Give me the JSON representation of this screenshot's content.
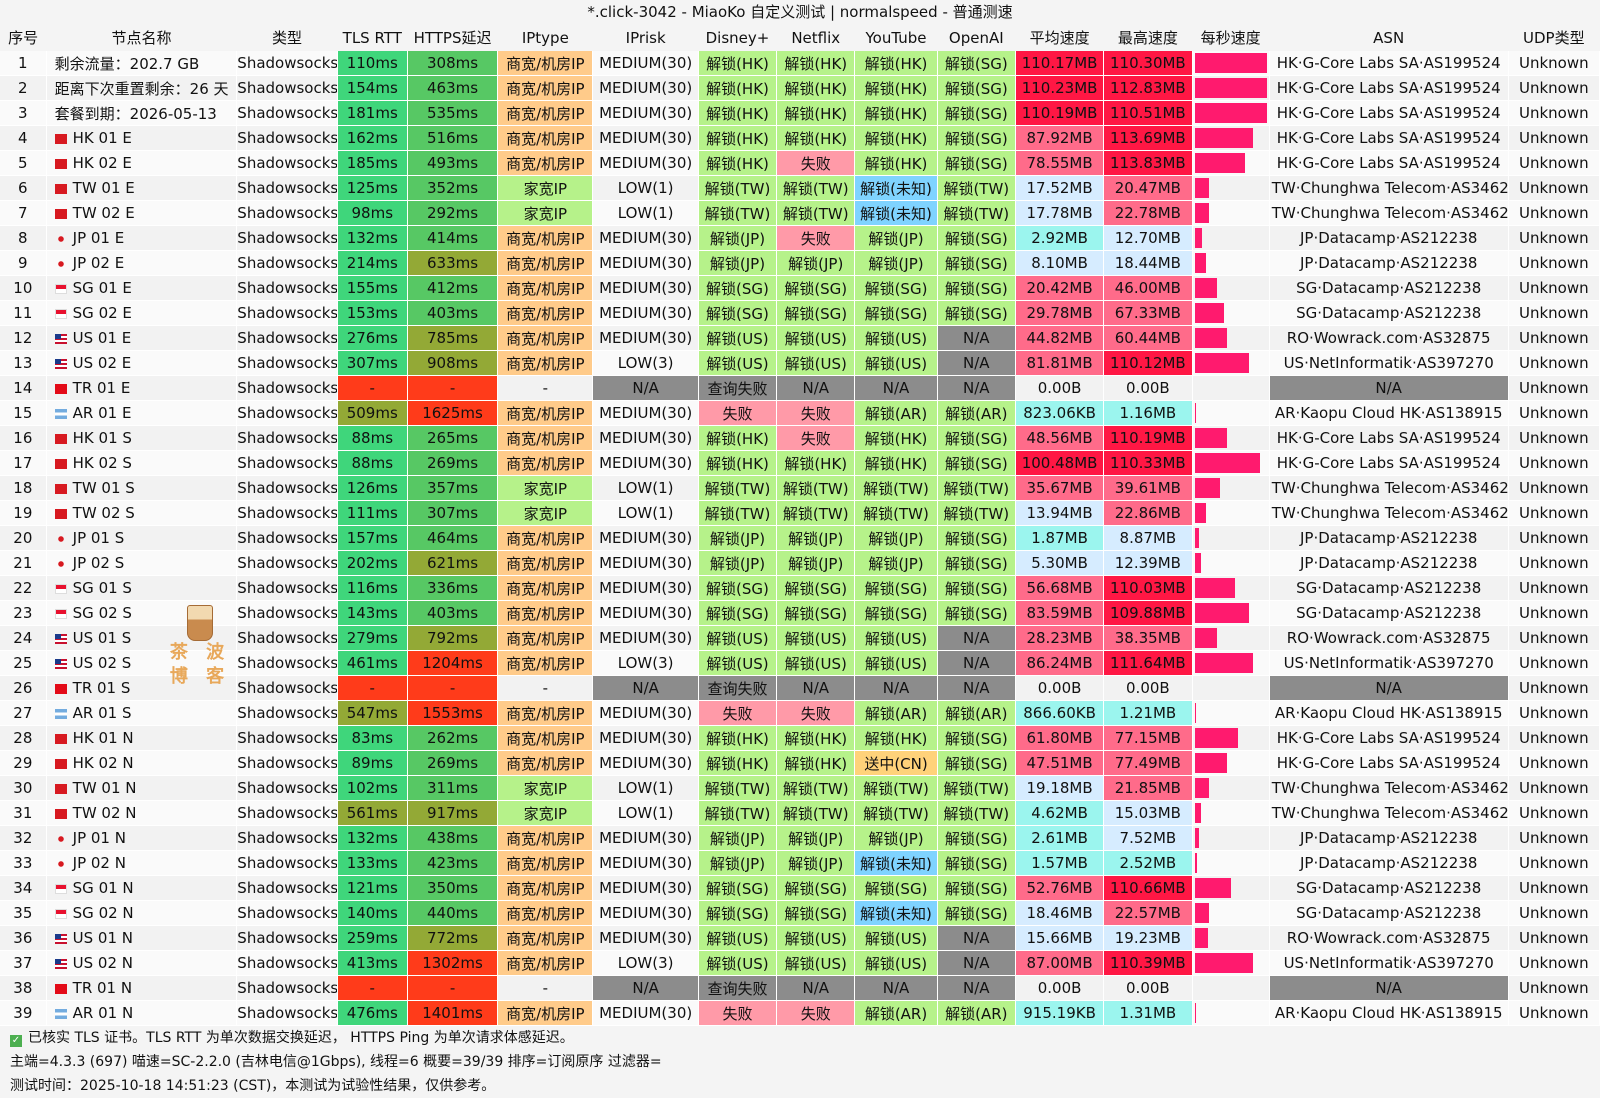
{
  "title": "*.click-3042 - MiaoKo 自定义测试 | normalspeed - 普通测速",
  "headers": [
    "序号",
    "节点名称",
    "类型",
    "TLS RTT",
    "HTTPS延迟",
    "IPtype",
    "IPrisk",
    "Disney+",
    "Netflix",
    "YouTube",
    "OpenAI",
    "平均速度",
    "最高速度",
    "每秒速度",
    "ASN",
    "UDP类型"
  ],
  "colors": {
    "green": "#3fd67b",
    "green2": "#57c864",
    "olive": "#93a936",
    "red": "#ff3b1a",
    "orange_ip": "#ffcb8a",
    "light_green": "#b6f28a",
    "pink": "#ff9aa8",
    "blue": "#7fd3ff",
    "gray": "#8c8c8c",
    "peach": "#ffd27a",
    "speed_red": "#ff1744",
    "speed_pink": "#ff6b8a",
    "speed_light": "#d6ecff",
    "speed_teal": "#9bf5ee",
    "spark": "#ff1a6e"
  },
  "rows": [
    {
      "no": "1",
      "name": "剩余流量：202.7 GB",
      "flag": "",
      "type": "Shadowsocks",
      "tls": "110ms",
      "https": "308ms",
      "iptype": "商宽/机房IP",
      "iprisk": "MEDIUM(30)",
      "disney": "解锁(HK)",
      "netflix": "解锁(HK)",
      "youtube": "解锁(HK)",
      "openai": "解锁(SG)",
      "avg": "110.17MB",
      "max": "110.30MB",
      "spark": 1.0,
      "asn": "HK·G-Core Labs SA·AS199524",
      "udp": "Unknown"
    },
    {
      "no": "2",
      "name": "距离下次重置剩余：26 天",
      "flag": "",
      "type": "Shadowsocks",
      "tls": "154ms",
      "https": "463ms",
      "iptype": "商宽/机房IP",
      "iprisk": "MEDIUM(30)",
      "disney": "解锁(HK)",
      "netflix": "解锁(HK)",
      "youtube": "解锁(HK)",
      "openai": "解锁(SG)",
      "avg": "110.23MB",
      "max": "112.83MB",
      "spark": 1.0,
      "asn": "HK·G-Core Labs SA·AS199524",
      "udp": "Unknown"
    },
    {
      "no": "3",
      "name": "套餐到期：2026-05-13",
      "flag": "",
      "type": "Shadowsocks",
      "tls": "181ms",
      "https": "535ms",
      "iptype": "商宽/机房IP",
      "iprisk": "MEDIUM(30)",
      "disney": "解锁(HK)",
      "netflix": "解锁(HK)",
      "youtube": "解锁(HK)",
      "openai": "解锁(SG)",
      "avg": "110.19MB",
      "max": "110.51MB",
      "spark": 1.0,
      "asn": "HK·G-Core Labs SA·AS199524",
      "udp": "Unknown"
    },
    {
      "no": "4",
      "name": "HK 01 E",
      "flag": "HK",
      "type": "Shadowsocks",
      "tls": "162ms",
      "https": "516ms",
      "iptype": "商宽/机房IP",
      "iprisk": "MEDIUM(30)",
      "disney": "解锁(HK)",
      "netflix": "解锁(HK)",
      "youtube": "解锁(HK)",
      "openai": "解锁(SG)",
      "avg": "87.92MB",
      "max": "113.69MB",
      "spark": 0.8,
      "asn": "HK·G-Core Labs SA·AS199524",
      "udp": "Unknown"
    },
    {
      "no": "5",
      "name": "HK 02 E",
      "flag": "HK",
      "type": "Shadowsocks",
      "tls": "185ms",
      "https": "493ms",
      "iptype": "商宽/机房IP",
      "iprisk": "MEDIUM(30)",
      "disney": "解锁(HK)",
      "netflix": "失败",
      "youtube": "解锁(HK)",
      "openai": "解锁(SG)",
      "avg": "78.55MB",
      "max": "113.83MB",
      "spark": 0.7,
      "asn": "HK·G-Core Labs SA·AS199524",
      "udp": "Unknown"
    },
    {
      "no": "6",
      "name": "TW 01 E",
      "flag": "TW",
      "type": "Shadowsocks",
      "tls": "125ms",
      "https": "352ms",
      "iptype": "家宽IP",
      "iprisk": "LOW(1)",
      "disney": "解锁(TW)",
      "netflix": "解锁(TW)",
      "youtube": "解锁(未知)",
      "openai": "解锁(TW)",
      "avg": "17.52MB",
      "max": "20.47MB",
      "spark": 0.2,
      "asn": "TW·Chunghwa Telecom·AS3462",
      "udp": "Unknown"
    },
    {
      "no": "7",
      "name": "TW 02 E",
      "flag": "TW",
      "type": "Shadowsocks",
      "tls": "98ms",
      "https": "292ms",
      "iptype": "家宽IP",
      "iprisk": "LOW(1)",
      "disney": "解锁(TW)",
      "netflix": "解锁(TW)",
      "youtube": "解锁(未知)",
      "openai": "解锁(TW)",
      "avg": "17.78MB",
      "max": "22.78MB",
      "spark": 0.2,
      "asn": "TW·Chunghwa Telecom·AS3462",
      "udp": "Unknown"
    },
    {
      "no": "8",
      "name": "JP 01 E",
      "flag": "JP",
      "type": "Shadowsocks",
      "tls": "132ms",
      "https": "414ms",
      "iptype": "商宽/机房IP",
      "iprisk": "MEDIUM(30)",
      "disney": "解锁(JP)",
      "netflix": "失败",
      "youtube": "解锁(JP)",
      "openai": "解锁(SG)",
      "avg": "2.92MB",
      "max": "12.70MB",
      "spark": 0.1,
      "asn": "JP·Datacamp·AS212238",
      "udp": "Unknown"
    },
    {
      "no": "9",
      "name": "JP 02 E",
      "flag": "JP",
      "type": "Shadowsocks",
      "tls": "214ms",
      "https": "633ms",
      "iptype": "商宽/机房IP",
      "iprisk": "MEDIUM(30)",
      "disney": "解锁(JP)",
      "netflix": "解锁(JP)",
      "youtube": "解锁(JP)",
      "openai": "解锁(SG)",
      "avg": "8.10MB",
      "max": "18.44MB",
      "spark": 0.15,
      "asn": "JP·Datacamp·AS212238",
      "udp": "Unknown"
    },
    {
      "no": "10",
      "name": "SG 01 E",
      "flag": "SG",
      "type": "Shadowsocks",
      "tls": "155ms",
      "https": "412ms",
      "iptype": "商宽/机房IP",
      "iprisk": "MEDIUM(30)",
      "disney": "解锁(SG)",
      "netflix": "解锁(SG)",
      "youtube": "解锁(SG)",
      "openai": "解锁(SG)",
      "avg": "20.42MB",
      "max": "46.00MB",
      "spark": 0.3,
      "asn": "SG·Datacamp·AS212238",
      "udp": "Unknown"
    },
    {
      "no": "11",
      "name": "SG 02 E",
      "flag": "SG",
      "type": "Shadowsocks",
      "tls": "153ms",
      "https": "403ms",
      "iptype": "商宽/机房IP",
      "iprisk": "MEDIUM(30)",
      "disney": "解锁(SG)",
      "netflix": "解锁(SG)",
      "youtube": "解锁(SG)",
      "openai": "解锁(SG)",
      "avg": "29.78MB",
      "max": "67.33MB",
      "spark": 0.4,
      "asn": "SG·Datacamp·AS212238",
      "udp": "Unknown"
    },
    {
      "no": "12",
      "name": "US 01 E",
      "flag": "US",
      "type": "Shadowsocks",
      "tls": "276ms",
      "https": "785ms",
      "iptype": "商宽/机房IP",
      "iprisk": "MEDIUM(30)",
      "disney": "解锁(US)",
      "netflix": "解锁(US)",
      "youtube": "解锁(US)",
      "openai": "N/A",
      "avg": "44.82MB",
      "max": "60.44MB",
      "spark": 0.45,
      "asn": "RO·Wowrack.com·AS32875",
      "udp": "Unknown"
    },
    {
      "no": "13",
      "name": "US 02 E",
      "flag": "US",
      "type": "Shadowsocks",
      "tls": "307ms",
      "https": "908ms",
      "iptype": "商宽/机房IP",
      "iprisk": "LOW(3)",
      "disney": "解锁(US)",
      "netflix": "解锁(US)",
      "youtube": "解锁(US)",
      "openai": "N/A",
      "avg": "81.81MB",
      "max": "110.12MB",
      "spark": 0.75,
      "asn": "US·NetInformatik·AS397270",
      "udp": "Unknown"
    },
    {
      "no": "14",
      "name": "TR 01 E",
      "flag": "TR",
      "type": "Shadowsocks",
      "tls": "-",
      "https": "-",
      "iptype": "-",
      "iprisk": "N/A",
      "disney": "查询失败",
      "netflix": "N/A",
      "youtube": "N/A",
      "openai": "N/A",
      "avg": "0.00B",
      "max": "0.00B",
      "spark": 0,
      "asn": "N/A",
      "udp": "Unknown"
    },
    {
      "no": "15",
      "name": "AR 01 E",
      "flag": "AR",
      "type": "Shadowsocks",
      "tls": "509ms",
      "https": "1625ms",
      "iptype": "商宽/机房IP",
      "iprisk": "MEDIUM(30)",
      "disney": "失败",
      "netflix": "失败",
      "youtube": "解锁(AR)",
      "openai": "解锁(AR)",
      "avg": "823.06KB",
      "max": "1.16MB",
      "spark": 0.02,
      "asn": "AR·Kaopu Cloud HK·AS138915",
      "udp": "Unknown"
    },
    {
      "no": "16",
      "name": "HK 01 S",
      "flag": "HK",
      "type": "Shadowsocks",
      "tls": "88ms",
      "https": "265ms",
      "iptype": "商宽/机房IP",
      "iprisk": "MEDIUM(30)",
      "disney": "解锁(HK)",
      "netflix": "失败",
      "youtube": "解锁(HK)",
      "openai": "解锁(SG)",
      "avg": "48.56MB",
      "max": "110.19MB",
      "spark": 0.45,
      "asn": "HK·G-Core Labs SA·AS199524",
      "udp": "Unknown"
    },
    {
      "no": "17",
      "name": "HK 02 S",
      "flag": "HK",
      "type": "Shadowsocks",
      "tls": "88ms",
      "https": "269ms",
      "iptype": "商宽/机房IP",
      "iprisk": "MEDIUM(30)",
      "disney": "解锁(HK)",
      "netflix": "解锁(HK)",
      "youtube": "解锁(HK)",
      "openai": "解锁(SG)",
      "avg": "100.48MB",
      "max": "110.33MB",
      "spark": 0.9,
      "asn": "HK·G-Core Labs SA·AS199524",
      "udp": "Unknown"
    },
    {
      "no": "18",
      "name": "TW 01 S",
      "flag": "TW",
      "type": "Shadowsocks",
      "tls": "126ms",
      "https": "357ms",
      "iptype": "家宽IP",
      "iprisk": "LOW(1)",
      "disney": "解锁(TW)",
      "netflix": "解锁(TW)",
      "youtube": "解锁(TW)",
      "openai": "解锁(TW)",
      "avg": "35.67MB",
      "max": "39.61MB",
      "spark": 0.35,
      "asn": "TW·Chunghwa Telecom·AS3462",
      "udp": "Unknown"
    },
    {
      "no": "19",
      "name": "TW 02 S",
      "flag": "TW",
      "type": "Shadowsocks",
      "tls": "111ms",
      "https": "307ms",
      "iptype": "家宽IP",
      "iprisk": "LOW(1)",
      "disney": "解锁(TW)",
      "netflix": "解锁(TW)",
      "youtube": "解锁(TW)",
      "openai": "解锁(TW)",
      "avg": "13.94MB",
      "max": "22.86MB",
      "spark": 0.15,
      "asn": "TW·Chunghwa Telecom·AS3462",
      "udp": "Unknown"
    },
    {
      "no": "20",
      "name": "JP 01 S",
      "flag": "JP",
      "type": "Shadowsocks",
      "tls": "157ms",
      "https": "464ms",
      "iptype": "商宽/机房IP",
      "iprisk": "MEDIUM(30)",
      "disney": "解锁(JP)",
      "netflix": "解锁(JP)",
      "youtube": "解锁(JP)",
      "openai": "解锁(SG)",
      "avg": "1.87MB",
      "max": "8.87MB",
      "spark": 0.05,
      "asn": "JP·Datacamp·AS212238",
      "udp": "Unknown"
    },
    {
      "no": "21",
      "name": "JP 02 S",
      "flag": "JP",
      "type": "Shadowsocks",
      "tls": "202ms",
      "https": "621ms",
      "iptype": "商宽/机房IP",
      "iprisk": "MEDIUM(30)",
      "disney": "解锁(JP)",
      "netflix": "解锁(JP)",
      "youtube": "解锁(JP)",
      "openai": "解锁(SG)",
      "avg": "5.30MB",
      "max": "12.39MB",
      "spark": 0.08,
      "asn": "JP·Datacamp·AS212238",
      "udp": "Unknown"
    },
    {
      "no": "22",
      "name": "SG 01 S",
      "flag": "SG",
      "type": "Shadowsocks",
      "tls": "116ms",
      "https": "336ms",
      "iptype": "商宽/机房IP",
      "iprisk": "MEDIUM(30)",
      "disney": "解锁(SG)",
      "netflix": "解锁(SG)",
      "youtube": "解锁(SG)",
      "openai": "解锁(SG)",
      "avg": "56.68MB",
      "max": "110.03MB",
      "spark": 0.55,
      "asn": "SG·Datacamp·AS212238",
      "udp": "Unknown"
    },
    {
      "no": "23",
      "name": "SG 02 S",
      "flag": "SG",
      "type": "Shadowsocks",
      "tls": "143ms",
      "https": "403ms",
      "iptype": "商宽/机房IP",
      "iprisk": "MEDIUM(30)",
      "disney": "解锁(SG)",
      "netflix": "解锁(SG)",
      "youtube": "解锁(SG)",
      "openai": "解锁(SG)",
      "avg": "83.59MB",
      "max": "109.88MB",
      "spark": 0.75,
      "asn": "SG·Datacamp·AS212238",
      "udp": "Unknown"
    },
    {
      "no": "24",
      "name": "US 01 S",
      "flag": "US",
      "type": "Shadowsocks",
      "tls": "279ms",
      "https": "792ms",
      "iptype": "商宽/机房IP",
      "iprisk": "MEDIUM(30)",
      "disney": "解锁(US)",
      "netflix": "解锁(US)",
      "youtube": "解锁(US)",
      "openai": "N/A",
      "avg": "28.23MB",
      "max": "38.35MB",
      "spark": 0.3,
      "asn": "RO·Wowrack.com·AS32875",
      "udp": "Unknown"
    },
    {
      "no": "25",
      "name": "US 02 S",
      "flag": "US",
      "type": "Shadowsocks",
      "tls": "461ms",
      "https": "1204ms",
      "iptype": "商宽/机房IP",
      "iprisk": "LOW(3)",
      "disney": "解锁(US)",
      "netflix": "解锁(US)",
      "youtube": "解锁(US)",
      "openai": "N/A",
      "avg": "86.24MB",
      "max": "111.64MB",
      "spark": 0.8,
      "asn": "US·NetInformatik·AS397270",
      "udp": "Unknown"
    },
    {
      "no": "26",
      "name": "TR 01 S",
      "flag": "TR",
      "type": "Shadowsocks",
      "tls": "-",
      "https": "-",
      "iptype": "-",
      "iprisk": "N/A",
      "disney": "查询失败",
      "netflix": "N/A",
      "youtube": "N/A",
      "openai": "N/A",
      "avg": "0.00B",
      "max": "0.00B",
      "spark": 0,
      "asn": "N/A",
      "udp": "Unknown"
    },
    {
      "no": "27",
      "name": "AR 01 S",
      "flag": "AR",
      "type": "Shadowsocks",
      "tls": "547ms",
      "https": "1553ms",
      "iptype": "商宽/机房IP",
      "iprisk": "MEDIUM(30)",
      "disney": "失败",
      "netflix": "失败",
      "youtube": "解锁(AR)",
      "openai": "解锁(AR)",
      "avg": "866.60KB",
      "max": "1.21MB",
      "spark": 0.02,
      "asn": "AR·Kaopu Cloud HK·AS138915",
      "udp": "Unknown"
    },
    {
      "no": "28",
      "name": "HK 01 N",
      "flag": "HK",
      "type": "Shadowsocks",
      "tls": "83ms",
      "https": "262ms",
      "iptype": "商宽/机房IP",
      "iprisk": "MEDIUM(30)",
      "disney": "解锁(HK)",
      "netflix": "解锁(HK)",
      "youtube": "解锁(HK)",
      "openai": "解锁(SG)",
      "avg": "61.80MB",
      "max": "77.15MB",
      "spark": 0.6,
      "asn": "HK·G-Core Labs SA·AS199524",
      "udp": "Unknown"
    },
    {
      "no": "29",
      "name": "HK 02 N",
      "flag": "HK",
      "type": "Shadowsocks",
      "tls": "89ms",
      "https": "269ms",
      "iptype": "商宽/机房IP",
      "iprisk": "MEDIUM(30)",
      "disney": "解锁(HK)",
      "netflix": "解锁(HK)",
      "youtube": "送中(CN)",
      "openai": "解锁(SG)",
      "avg": "47.51MB",
      "max": "77.49MB",
      "spark": 0.45,
      "asn": "HK·G-Core Labs SA·AS199524",
      "udp": "Unknown"
    },
    {
      "no": "30",
      "name": "TW 01 N",
      "flag": "TW",
      "type": "Shadowsocks",
      "tls": "102ms",
      "https": "311ms",
      "iptype": "家宽IP",
      "iprisk": "LOW(1)",
      "disney": "解锁(TW)",
      "netflix": "解锁(TW)",
      "youtube": "解锁(TW)",
      "openai": "解锁(TW)",
      "avg": "19.18MB",
      "max": "21.85MB",
      "spark": 0.2,
      "asn": "TW·Chunghwa Telecom·AS3462",
      "udp": "Unknown"
    },
    {
      "no": "31",
      "name": "TW 02 N",
      "flag": "TW",
      "type": "Shadowsocks",
      "tls": "561ms",
      "https": "917ms",
      "iptype": "家宽IP",
      "iprisk": "LOW(1)",
      "disney": "解锁(TW)",
      "netflix": "解锁(TW)",
      "youtube": "解锁(TW)",
      "openai": "解锁(TW)",
      "avg": "4.62MB",
      "max": "15.03MB",
      "spark": 0.08,
      "asn": "TW·Chunghwa Telecom·AS3462",
      "udp": "Unknown"
    },
    {
      "no": "32",
      "name": "JP 01 N",
      "flag": "JP",
      "type": "Shadowsocks",
      "tls": "132ms",
      "https": "438ms",
      "iptype": "商宽/机房IP",
      "iprisk": "MEDIUM(30)",
      "disney": "解锁(JP)",
      "netflix": "解锁(JP)",
      "youtube": "解锁(JP)",
      "openai": "解锁(SG)",
      "avg": "2.61MB",
      "max": "7.52MB",
      "spark": 0.05,
      "asn": "JP·Datacamp·AS212238",
      "udp": "Unknown"
    },
    {
      "no": "33",
      "name": "JP 02 N",
      "flag": "JP",
      "type": "Shadowsocks",
      "tls": "133ms",
      "https": "423ms",
      "iptype": "商宽/机房IP",
      "iprisk": "MEDIUM(30)",
      "disney": "解锁(JP)",
      "netflix": "解锁(JP)",
      "youtube": "解锁(未知)",
      "openai": "解锁(SG)",
      "avg": "1.57MB",
      "max": "2.52MB",
      "spark": 0.03,
      "asn": "JP·Datacamp·AS212238",
      "udp": "Unknown"
    },
    {
      "no": "34",
      "name": "SG 01 N",
      "flag": "SG",
      "type": "Shadowsocks",
      "tls": "121ms",
      "https": "350ms",
      "iptype": "商宽/机房IP",
      "iprisk": "MEDIUM(30)",
      "disney": "解锁(SG)",
      "netflix": "解锁(SG)",
      "youtube": "解锁(SG)",
      "openai": "解锁(SG)",
      "avg": "52.76MB",
      "max": "110.66MB",
      "spark": 0.5,
      "asn": "SG·Datacamp·AS212238",
      "udp": "Unknown"
    },
    {
      "no": "35",
      "name": "SG 02 N",
      "flag": "SG",
      "type": "Shadowsocks",
      "tls": "140ms",
      "https": "440ms",
      "iptype": "商宽/机房IP",
      "iprisk": "MEDIUM(30)",
      "disney": "解锁(SG)",
      "netflix": "解锁(SG)",
      "youtube": "解锁(未知)",
      "openai": "解锁(SG)",
      "avg": "18.46MB",
      "max": "22.57MB",
      "spark": 0.2,
      "asn": "SG·Datacamp·AS212238",
      "udp": "Unknown"
    },
    {
      "no": "36",
      "name": "US 01 N",
      "flag": "US",
      "type": "Shadowsocks",
      "tls": "259ms",
      "https": "772ms",
      "iptype": "商宽/机房IP",
      "iprisk": "MEDIUM(30)",
      "disney": "解锁(US)",
      "netflix": "解锁(US)",
      "youtube": "解锁(US)",
      "openai": "N/A",
      "avg": "15.66MB",
      "max": "19.23MB",
      "spark": 0.18,
      "asn": "RO·Wowrack.com·AS32875",
      "udp": "Unknown"
    },
    {
      "no": "37",
      "name": "US 02 N",
      "flag": "US",
      "type": "Shadowsocks",
      "tls": "413ms",
      "https": "1302ms",
      "iptype": "商宽/机房IP",
      "iprisk": "LOW(3)",
      "disney": "解锁(US)",
      "netflix": "解锁(US)",
      "youtube": "解锁(US)",
      "openai": "N/A",
      "avg": "87.00MB",
      "max": "110.39MB",
      "spark": 0.8,
      "asn": "US·NetInformatik·AS397270",
      "udp": "Unknown"
    },
    {
      "no": "38",
      "name": "TR 01 N",
      "flag": "TR",
      "type": "Shadowsocks",
      "tls": "-",
      "https": "-",
      "iptype": "-",
      "iprisk": "N/A",
      "disney": "查询失败",
      "netflix": "N/A",
      "youtube": "N/A",
      "openai": "N/A",
      "avg": "0.00B",
      "max": "0.00B",
      "spark": 0,
      "asn": "N/A",
      "udp": "Unknown"
    },
    {
      "no": "39",
      "name": "AR 01 N",
      "flag": "AR",
      "type": "Shadowsocks",
      "tls": "476ms",
      "https": "1401ms",
      "iptype": "商宽/机房IP",
      "iprisk": "MEDIUM(30)",
      "disney": "失败",
      "netflix": "失败",
      "youtube": "解锁(AR)",
      "openai": "解锁(AR)",
      "avg": "915.19KB",
      "max": "1.31MB",
      "spark": 0.02,
      "asn": "AR·Kaopu Cloud HK·AS138915",
      "udp": "Unknown"
    }
  ],
  "footer": {
    "line1": "已核实 TLS 证书。TLS RTT 为单次数据交换延迟， HTTPS Ping 为单次请求体感延迟。",
    "line2": "主端=4.3.3 (697) 喵速=SC-2.2.0 (吉林电信@1Gbps), 线程=6 概要=39/39 排序=订阅原序 过滤器=",
    "line3": "测试时间：2025-10-18 14:51:23 (CST)，本测试为试验性结果，仅供参考。",
    "check_icon": "check-box-icon"
  },
  "mascot": {
    "icon": "bubble-tea-icon",
    "line1": "茶 波",
    "line2": "博 客"
  }
}
